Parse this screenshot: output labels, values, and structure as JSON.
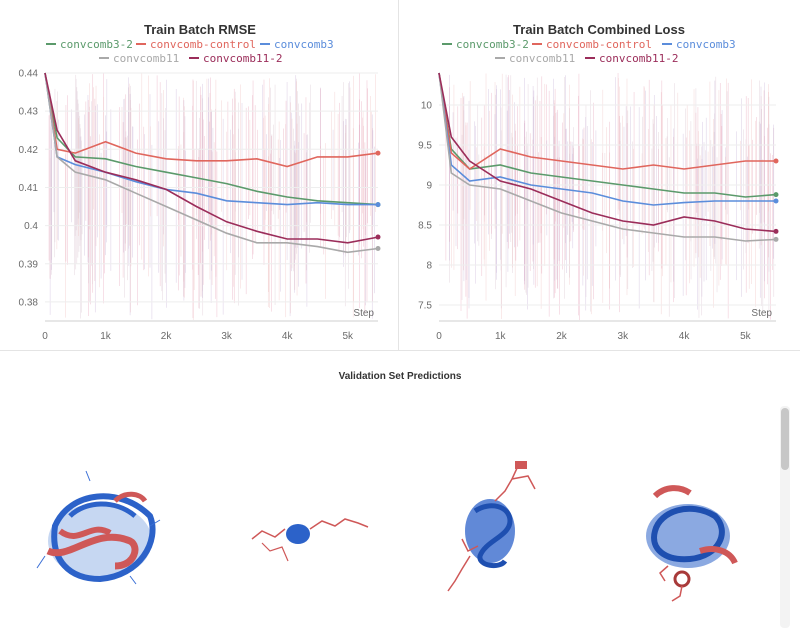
{
  "chart_data": [
    {
      "type": "line",
      "title": "Train Batch RMSE",
      "xlabel": "Step",
      "xlim": [
        0,
        5500
      ],
      "ylim": [
        0.375,
        0.44
      ],
      "xticks": [
        0,
        1000,
        2000,
        3000,
        4000,
        5000
      ],
      "xtick_labels": [
        "0",
        "1k",
        "2k",
        "3k",
        "4k",
        "5k"
      ],
      "yticks": [
        0.38,
        0.39,
        0.4,
        0.41,
        0.42,
        0.43,
        0.44
      ],
      "ytick_labels": [
        "0.38",
        "0.39",
        "0.4",
        "0.41",
        "0.42",
        "0.43",
        "0.44"
      ],
      "x": [
        0,
        200,
        500,
        1000,
        1500,
        2000,
        2500,
        3000,
        3500,
        4000,
        4500,
        5000,
        5500
      ],
      "series": [
        {
          "name": "convcomb3-2",
          "color": "#5b9a6b",
          "values": [
            0.44,
            0.423,
            0.418,
            0.4175,
            0.4155,
            0.414,
            0.4125,
            0.411,
            0.409,
            0.4075,
            0.4065,
            0.406,
            0.4055
          ]
        },
        {
          "name": "convcomb-control",
          "color": "#e0665d",
          "values": [
            0.44,
            0.42,
            0.419,
            0.422,
            0.419,
            0.4175,
            0.417,
            0.417,
            0.4175,
            0.4155,
            0.418,
            0.418,
            0.419
          ]
        },
        {
          "name": "convcomb3",
          "color": "#5b8ddb",
          "values": [
            0.44,
            0.418,
            0.416,
            0.414,
            0.4115,
            0.4095,
            0.4085,
            0.4065,
            0.406,
            0.4055,
            0.406,
            0.4055,
            0.4055
          ]
        },
        {
          "name": "convcomb11",
          "color": "#a9a9a9",
          "values": [
            0.44,
            0.418,
            0.414,
            0.412,
            0.4085,
            0.405,
            0.4015,
            0.398,
            0.3955,
            0.3955,
            0.3945,
            0.393,
            0.394
          ]
        },
        {
          "name": "convcomb11-2",
          "color": "#9b2d5a",
          "values": [
            0.44,
            0.425,
            0.417,
            0.414,
            0.412,
            0.4095,
            0.405,
            0.401,
            0.3985,
            0.3965,
            0.3965,
            0.3955,
            0.397
          ]
        }
      ]
    },
    {
      "type": "line",
      "title": "Train Batch Combined Loss",
      "xlabel": "Step",
      "xlim": [
        0,
        5500
      ],
      "ylim": [
        7.3,
        10.4
      ],
      "xticks": [
        0,
        1000,
        2000,
        3000,
        4000,
        5000
      ],
      "xtick_labels": [
        "0",
        "1k",
        "2k",
        "3k",
        "4k",
        "5k"
      ],
      "yticks": [
        7.5,
        8,
        8.5,
        9,
        9.5,
        10
      ],
      "ytick_labels": [
        "7.5",
        "8",
        "8.5",
        "9",
        "9.5",
        "10"
      ],
      "x": [
        0,
        200,
        500,
        1000,
        1500,
        2000,
        2500,
        3000,
        3500,
        4000,
        4500,
        5000,
        5500
      ],
      "series": [
        {
          "name": "convcomb3-2",
          "color": "#5b9a6b",
          "values": [
            10.4,
            9.45,
            9.2,
            9.25,
            9.15,
            9.1,
            9.05,
            9.0,
            8.95,
            8.9,
            8.9,
            8.85,
            8.88
          ]
        },
        {
          "name": "convcomb-control",
          "color": "#e0665d",
          "values": [
            10.4,
            9.4,
            9.2,
            9.45,
            9.35,
            9.3,
            9.25,
            9.2,
            9.25,
            9.2,
            9.25,
            9.3,
            9.3
          ]
        },
        {
          "name": "convcomb3",
          "color": "#5b8ddb",
          "values": [
            10.4,
            9.25,
            9.05,
            9.1,
            9.0,
            8.95,
            8.9,
            8.8,
            8.75,
            8.78,
            8.8,
            8.8,
            8.8
          ]
        },
        {
          "name": "convcomb11",
          "color": "#a9a9a9",
          "values": [
            10.4,
            9.15,
            9.0,
            8.95,
            8.8,
            8.65,
            8.55,
            8.45,
            8.4,
            8.35,
            8.35,
            8.3,
            8.32
          ]
        },
        {
          "name": "convcomb11-2",
          "color": "#9b2d5a",
          "values": [
            10.4,
            9.6,
            9.3,
            9.05,
            8.95,
            8.8,
            8.65,
            8.55,
            8.5,
            8.6,
            8.55,
            8.45,
            8.42
          ]
        }
      ]
    }
  ],
  "bottom_panel": {
    "title": "Validation Set Predictions"
  }
}
